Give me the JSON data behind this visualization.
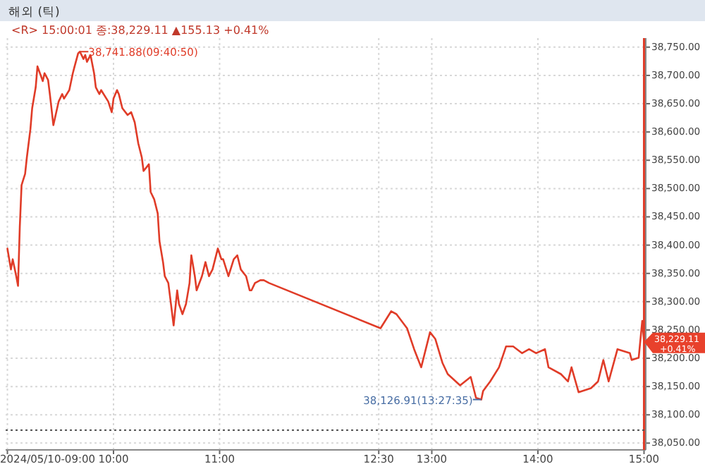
{
  "chart_data": {
    "type": "line",
    "title": "해외 (틱)",
    "subtitle": "<R> 15:00:01 종:38,229.11 ▲155.13 +0.41%",
    "x": [
      "2024-05-10T09:00",
      "2024-05-10T09:02",
      "2024-05-10T09:03",
      "2024-05-10T09:05",
      "2024-05-10T09:06",
      "2024-05-10T09:07",
      "2024-05-10T09:08",
      "2024-05-10T09:10",
      "2024-05-10T09:11",
      "2024-05-10T09:13",
      "2024-05-10T09:14",
      "2024-05-10T09:16",
      "2024-05-10T09:17",
      "2024-05-10T09:20",
      "2024-05-10T09:21",
      "2024-05-10T09:23",
      "2024-05-10T09:24",
      "2024-05-10T09:26",
      "2024-05-10T09:29",
      "2024-05-10T09:31",
      "2024-05-10T09:32",
      "2024-05-10T09:35",
      "2024-05-10T09:37",
      "2024-05-10T09:38",
      "2024-05-10T09:40",
      "2024-05-10T09:41",
      "2024-05-10T09:43",
      "2024-05-10T09:44",
      "2024-05-10T09:45",
      "2024-05-10T09:47",
      "2024-05-10T09:49",
      "2024-05-10T09:50",
      "2024-05-10T09:52",
      "2024-05-10T09:53",
      "2024-05-10T09:57",
      "2024-05-10T09:59",
      "2024-05-10T10:00",
      "2024-05-10T10:02",
      "2024-05-10T10:03",
      "2024-05-10T10:05",
      "2024-05-10T10:08",
      "2024-05-10T10:10",
      "2024-05-10T10:12",
      "2024-05-10T10:14",
      "2024-05-10T10:16",
      "2024-05-10T10:17",
      "2024-05-10T10:20",
      "2024-05-10T10:21",
      "2024-05-10T10:23",
      "2024-05-10T10:25",
      "2024-05-10T10:26",
      "2024-05-10T10:28",
      "2024-05-10T10:29",
      "2024-05-10T10:31",
      "2024-05-10T10:32",
      "2024-05-10T10:34",
      "2024-05-10T10:36",
      "2024-05-10T10:37",
      "2024-05-10T10:39",
      "2024-05-10T10:41",
      "2024-05-10T10:43",
      "2024-05-10T10:44",
      "2024-05-10T10:46",
      "2024-05-10T10:47",
      "2024-05-10T10:50",
      "2024-05-10T10:52",
      "2024-05-10T10:54",
      "2024-05-10T10:56",
      "2024-05-10T10:59",
      "2024-05-10T11:01",
      "2024-05-10T11:02",
      "2024-05-10T11:05",
      "2024-05-10T11:08",
      "2024-05-10T11:10",
      "2024-05-10T11:12",
      "2024-05-10T11:15",
      "2024-05-10T11:17",
      "2024-05-10T11:18",
      "2024-05-10T11:20",
      "2024-05-10T11:23",
      "2024-05-10T11:25",
      "2024-05-10T11:28",
      "2024-05-10T12:31",
      "2024-05-10T12:37",
      "2024-05-10T12:40",
      "2024-05-10T12:46",
      "2024-05-10T12:50",
      "2024-05-10T12:54",
      "2024-05-10T12:59",
      "2024-05-10T13:02",
      "2024-05-10T13:06",
      "2024-05-10T13:09",
      "2024-05-10T13:16",
      "2024-05-10T13:22",
      "2024-05-10T13:25",
      "2024-05-10T13:28",
      "2024-05-10T13:29",
      "2024-05-10T13:33",
      "2024-05-10T13:38",
      "2024-05-10T13:42",
      "2024-05-10T13:46",
      "2024-05-10T13:51",
      "2024-05-10T13:55",
      "2024-05-10T13:59",
      "2024-05-10T14:04",
      "2024-05-10T14:06",
      "2024-05-10T14:13",
      "2024-05-10T14:17",
      "2024-05-10T14:19",
      "2024-05-10T14:23",
      "2024-05-10T14:30",
      "2024-05-10T14:34",
      "2024-05-10T14:37",
      "2024-05-10T14:40",
      "2024-05-10T14:45",
      "2024-05-10T14:52",
      "2024-05-10T14:53",
      "2024-05-10T14:57",
      "2024-05-10T14:59",
      "2024-05-10T15:00"
    ],
    "series": [
      {
        "color": "#e03c28",
        "values": [
          38394,
          38357,
          38375,
          38345,
          38328,
          38432,
          38506,
          38526,
          38555,
          38605,
          38642,
          38679,
          38716,
          38690,
          38704,
          38692,
          38667,
          38612,
          38654,
          38667,
          38659,
          38674,
          38704,
          38716,
          38739,
          38742,
          38729,
          38736,
          38724,
          38736,
          38704,
          38679,
          38667,
          38674,
          38654,
          38635,
          38659,
          38674,
          38667,
          38642,
          38630,
          38635,
          38617,
          38580,
          38555,
          38531,
          38543,
          38494,
          38481,
          38456,
          38407,
          38370,
          38345,
          38333,
          38308,
          38258,
          38320,
          38296,
          38278,
          38296,
          38333,
          38382,
          38345,
          38320,
          38345,
          38370,
          38345,
          38357,
          38394,
          38375,
          38375,
          38345,
          38375,
          38382,
          38357,
          38345,
          38320,
          38320,
          38333,
          38338,
          38338,
          38333,
          38253,
          38283,
          38278,
          38253,
          38216,
          38184,
          38246,
          38234,
          38192,
          38172,
          38152,
          38167,
          38130,
          38127,
          38142,
          38159,
          38184,
          38221,
          38221,
          38209,
          38216,
          38209,
          38216,
          38184,
          38172,
          38159,
          38184,
          38140,
          38147,
          38159,
          38197,
          38159,
          38216,
          38209,
          38197,
          38201,
          38266,
          38229
        ]
      }
    ],
    "xlim": [
      "2024-05-10T08:59",
      "2024-05-10T15:01"
    ],
    "xticks": [
      {
        "value": "2024-05-10T09:00",
        "label": "2024/05/10-09:00"
      },
      {
        "value": "2024-05-10T10:00",
        "label": "10:00"
      },
      {
        "value": "2024-05-10T11:00",
        "label": "11:00"
      },
      {
        "value": "2024-05-10T12:30",
        "label": "12:30"
      },
      {
        "value": "2024-05-10T13:00",
        "label": "13:00"
      },
      {
        "value": "2024-05-10T14:00",
        "label": "14:00"
      },
      {
        "value": "2024-05-10T15:00",
        "label": "15:00"
      }
    ],
    "ylim": [
      38038,
      38766
    ],
    "yticks": [
      {
        "value": 38050,
        "label": "38,050.00"
      },
      {
        "value": 38100,
        "label": "38,100.00"
      },
      {
        "value": 38150,
        "label": "38,150.00"
      },
      {
        "value": 38200,
        "label": "38,200.00"
      },
      {
        "value": 38250,
        "label": "38,250.00"
      },
      {
        "value": 38300,
        "label": "38,300.00"
      },
      {
        "value": 38350,
        "label": "38,350.00"
      },
      {
        "value": 38400,
        "label": "38,400.00"
      },
      {
        "value": 38450,
        "label": "38,450.00"
      },
      {
        "value": 38500,
        "label": "38,500.00"
      },
      {
        "value": 38550,
        "label": "38,550.00"
      },
      {
        "value": 38600,
        "label": "38,600.00"
      },
      {
        "value": 38650,
        "label": "38,650.00"
      },
      {
        "value": 38700,
        "label": "38,700.00"
      },
      {
        "value": 38750,
        "label": "38,750.00"
      }
    ],
    "grid": true,
    "line_style": "solid",
    "marker": "none",
    "ref_lines": [
      {
        "axis": "x",
        "value": "2024-05-10T15:00",
        "color": "#e03c28",
        "line_style": "solid"
      },
      {
        "axis": "y",
        "value": 38073,
        "color": "#555555",
        "line_style": "dotted"
      }
    ],
    "annotations": [
      {
        "text": "38,741.88(09:40:50)",
        "x": "2024-05-10T09:41",
        "y": 38742
      },
      {
        "text": "38,126.91(13:27:35)",
        "x": "2024-05-10T13:28",
        "y": 38127
      },
      {
        "text": "38,229.11 +0.41%",
        "x": "2024-05-10T15:00",
        "y": 38229
      }
    ]
  }
}
